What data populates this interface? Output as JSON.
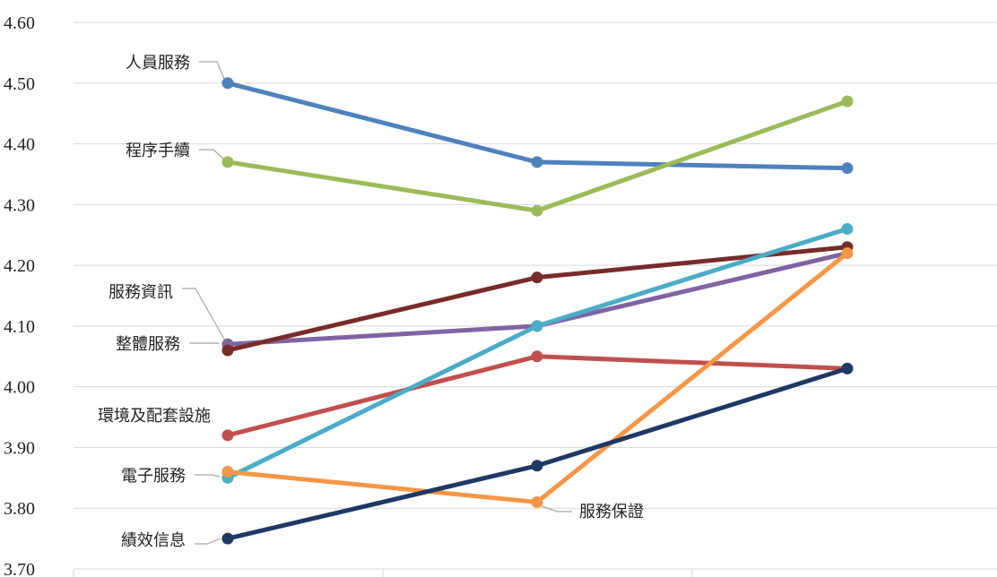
{
  "chart_data": {
    "type": "line",
    "title": "",
    "xlabel": "",
    "ylabel": "",
    "categories": [
      "",
      "",
      ""
    ],
    "ylim": [
      3.7,
      4.6
    ],
    "yticks": [
      "3.70",
      "3.80",
      "3.90",
      "4.00",
      "4.10",
      "4.20",
      "4.30",
      "4.40",
      "4.50",
      "4.60"
    ],
    "grid": true,
    "legend": "none",
    "series": [
      {
        "name": "人員服務",
        "values": [
          4.5,
          4.37,
          4.36
        ],
        "color": "#4f81bd"
      },
      {
        "name": "程序手續",
        "values": [
          4.37,
          4.29,
          4.47
        ],
        "color": "#9bbb59"
      },
      {
        "name": "服務資訊",
        "values": [
          4.07,
          4.1,
          4.22
        ],
        "color": "#8064a2"
      },
      {
        "name": "整體服務",
        "values": [
          4.06,
          4.18,
          4.23
        ],
        "color": "#772c2a"
      },
      {
        "name": "環境及配套設施",
        "values": [
          3.92,
          4.05,
          4.03
        ],
        "color": "#c0504d"
      },
      {
        "name": "電子服務",
        "values": [
          3.85,
          4.1,
          4.26
        ],
        "color": "#4bacc6"
      },
      {
        "name": "服務保證",
        "values": [
          3.86,
          3.81,
          4.22
        ],
        "color": "#f79646"
      },
      {
        "name": "績效信息",
        "values": [
          3.75,
          3.87,
          4.03
        ],
        "color": "#1f3864"
      }
    ]
  }
}
